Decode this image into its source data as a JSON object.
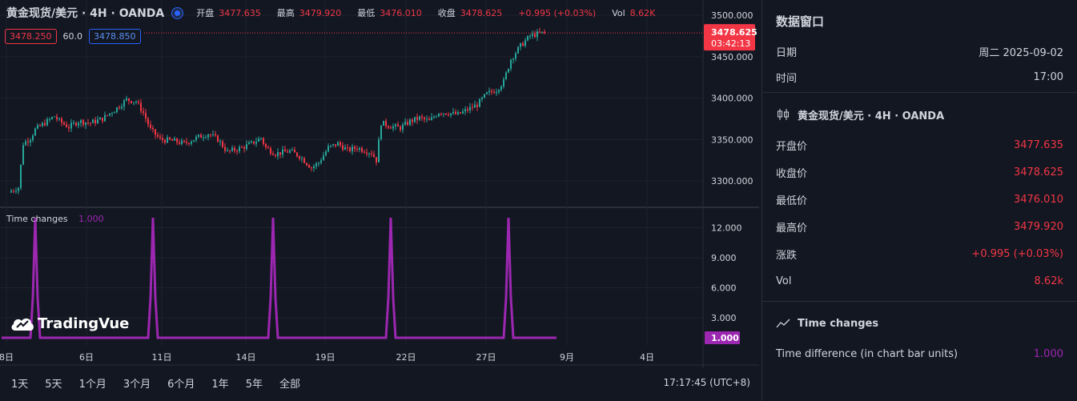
{
  "header": {
    "symbol": "黄金现货/美元 · 4H · OANDA",
    "open_label": "开盘",
    "open": "3477.635",
    "high_label": "最高",
    "high": "3479.920",
    "low_label": "最低",
    "low": "3476.010",
    "close_label": "收盘",
    "close": "3478.625",
    "change": "+0.995 (+0.03%)",
    "vol_label": "Vol",
    "vol": "8.62K"
  },
  "quote": {
    "bid": "3478.250",
    "spread": "60.0",
    "ask": "3478.850"
  },
  "price_tag": {
    "price": "3478.625",
    "countdown": "03:42:13"
  },
  "indicator": {
    "name": "Time changes",
    "value": "1.000"
  },
  "logo": "TradingVue",
  "bottom": {
    "periods": [
      "1天",
      "5天",
      "1个月",
      "3个月",
      "6个月",
      "1年",
      "5年",
      "全部"
    ],
    "clock": "17:17:45 (UTC+8)"
  },
  "colors": {
    "up": "#26a69a",
    "down": "#f23645",
    "indicator": "#9c27b0",
    "accent": "#2962ff"
  },
  "chart_data": [
    {
      "type": "candlestick",
      "title": "黄金现货/美元 · 4H · OANDA",
      "y_ticks": [
        3300,
        3350,
        3400,
        3450,
        3500
      ],
      "x_ticks": [
        "8日",
        "6日",
        "11日",
        "14日",
        "19日",
        "22日",
        "27日",
        "9月",
        "4日"
      ],
      "last_price": 3478.625,
      "close_path": [
        [
          0,
          3288
        ],
        [
          3,
          3292
        ],
        [
          5,
          3345
        ],
        [
          8,
          3352
        ],
        [
          10,
          3362
        ],
        [
          14,
          3370
        ],
        [
          18,
          3378
        ],
        [
          20,
          3372
        ],
        [
          24,
          3365
        ],
        [
          28,
          3372
        ],
        [
          33,
          3370
        ],
        [
          38,
          3375
        ],
        [
          44,
          3388
        ],
        [
          48,
          3398
        ],
        [
          52,
          3396
        ],
        [
          55,
          3382
        ],
        [
          58,
          3362
        ],
        [
          62,
          3350
        ],
        [
          68,
          3348
        ],
        [
          72,
          3345
        ],
        [
          78,
          3353
        ],
        [
          82,
          3357
        ],
        [
          86,
          3350
        ],
        [
          90,
          3335
        ],
        [
          96,
          3340
        ],
        [
          100,
          3345
        ],
        [
          104,
          3352
        ],
        [
          106,
          3340
        ],
        [
          110,
          3333
        ],
        [
          116,
          3336
        ],
        [
          120,
          3330
        ],
        [
          125,
          3316
        ],
        [
          128,
          3322
        ],
        [
          132,
          3340
        ],
        [
          136,
          3345
        ],
        [
          140,
          3337
        ],
        [
          144,
          3340
        ],
        [
          146,
          3338
        ],
        [
          150,
          3334
        ],
        [
          152,
          3325
        ],
        [
          154,
          3370
        ],
        [
          158,
          3366
        ],
        [
          162,
          3364
        ],
        [
          166,
          3372
        ],
        [
          170,
          3376
        ],
        [
          174,
          3372
        ],
        [
          178,
          3383
        ],
        [
          182,
          3382
        ],
        [
          186,
          3380
        ],
        [
          190,
          3386
        ],
        [
          194,
          3392
        ],
        [
          198,
          3405
        ],
        [
          202,
          3410
        ],
        [
          205,
          3420
        ],
        [
          208,
          3447
        ],
        [
          212,
          3463
        ],
        [
          216,
          3475
        ],
        [
          220,
          3478
        ],
        [
          222,
          3478.625
        ]
      ]
    },
    {
      "type": "line",
      "title": "Time changes",
      "y_ticks": [
        3,
        6,
        9,
        12
      ],
      "last_value": 1.0,
      "baseline": 1,
      "spike_value": 13,
      "spike_positions": [
        10,
        59,
        109,
        158,
        207
      ],
      "n_bars": 224
    }
  ],
  "data_window": {
    "title": "数据窗口",
    "date_label": "日期",
    "date": "周二 2025-09-02",
    "time_label": "时间",
    "time": "17:00",
    "series_name": "黄金现货/美元 · 4H · OANDA",
    "rows": [
      {
        "label": "开盘价",
        "value": "3477.635"
      },
      {
        "label": "收盘价",
        "value": "3478.625"
      },
      {
        "label": "最低价",
        "value": "3476.010"
      },
      {
        "label": "最高价",
        "value": "3479.920"
      },
      {
        "label": "涨跌",
        "value": "+0.995 (+0.03%)"
      },
      {
        "label": "Vol",
        "value": "8.62k"
      }
    ],
    "indicator_name": "Time changes",
    "indicator_row_label": "Time difference (in chart bar units)",
    "indicator_row_value": "1.000"
  }
}
